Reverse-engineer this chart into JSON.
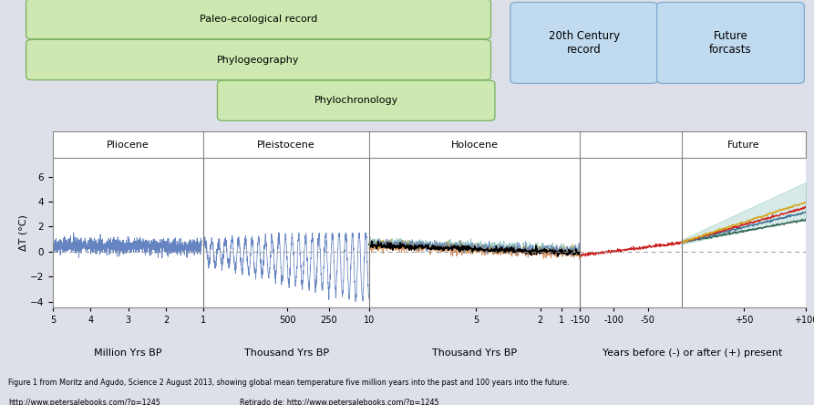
{
  "background_color": "#dde0e8",
  "plot_bg_color": "#ffffff",
  "ylabel": "ΔT (°C)",
  "ylim": [
    -4.5,
    7.5
  ],
  "yticks": [
    -4,
    -2,
    0,
    2,
    4,
    6
  ],
  "caption_line1": "Figure 1 from Moritz and Agudo, Science 2 August 2013, showing global mean temperature five million years into the past and 100 years into the future.",
  "caption_line2": "http://www.petersalebooks.com/?p=1245",
  "caption_line3": "Retirado de: http://www.petersalebooks.com/?p=1245",
  "blue_line_color": "#5577bb",
  "black_line_color": "#111111",
  "red_line_color": "#cc2222",
  "green_box_fc": "#cde8b0",
  "green_box_ec": "#7ab060",
  "blue_box_fc": "#c0daf0",
  "blue_box_ec": "#80aad0",
  "epoch_box_fc": "#ffffff",
  "epoch_box_ec": "#888888",
  "shade_color": "#7bbcb0",
  "shade_alpha": 0.3,
  "future_colors": [
    "#336655",
    "#cc2222",
    "#d4a820",
    "#447799"
  ],
  "holocene_colors": [
    "#7bbcb0",
    "#d4a820",
    "#c87030"
  ],
  "vline_color": "#777777",
  "zero_line_color": "#999999",
  "plio_section": [
    0.0,
    2.0
  ],
  "plei_section": [
    2.0,
    4.2
  ],
  "holo_section": [
    4.2,
    7.0
  ],
  "recent_section": [
    7.0,
    8.35
  ],
  "future_section": [
    8.35,
    10.0
  ],
  "xlim": [
    0,
    10
  ]
}
